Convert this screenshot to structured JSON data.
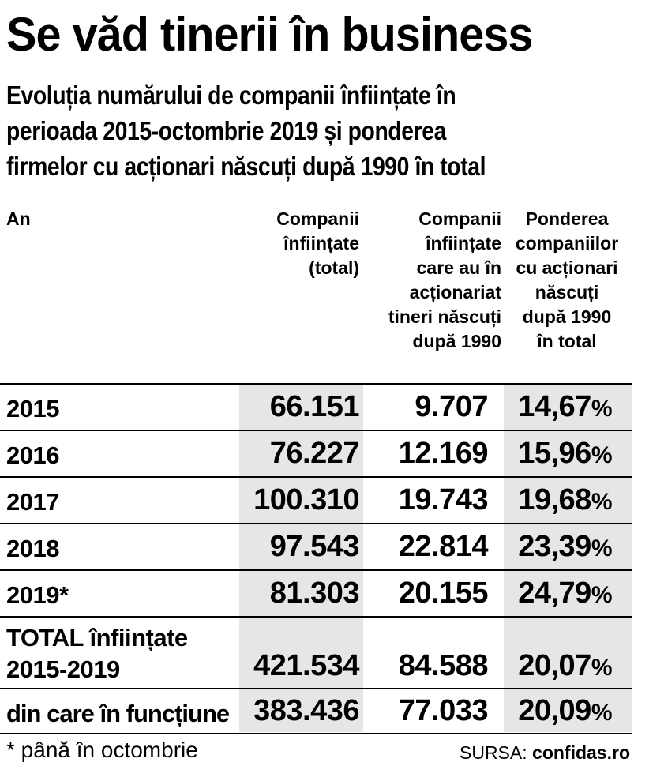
{
  "title": "Se văd tinerii în business",
  "subtitle_lines": [
    "Evoluția numărului de companii înființate în",
    "perioada 2015-octombrie 2019 și ponderea",
    "firmelor cu acționari născuți după 1990 în total"
  ],
  "headers": {
    "year": "An",
    "col1": [
      "Companii",
      "înființate",
      "(total)"
    ],
    "col2": [
      "Companii",
      "înființate",
      "care au în",
      "acționariat",
      "tineri născuți",
      "după 1990"
    ],
    "col3": [
      "Ponderea",
      "companiilor",
      "cu acționari",
      "născuți",
      "după 1990",
      "în total"
    ]
  },
  "rows": [
    {
      "year": "2015",
      "total": "66.151",
      "young": "9.707",
      "share": "14,67"
    },
    {
      "year": "2016",
      "total": "76.227",
      "young": "12.169",
      "share": "15,96"
    },
    {
      "year": "2017",
      "total": "100.310",
      "young": "19.743",
      "share": "19,68"
    },
    {
      "year": "2018",
      "total": "97.543",
      "young": "22.814",
      "share": "23,39"
    },
    {
      "year": "2019*",
      "total": "81.303",
      "young": "20.155",
      "share": "24,79"
    }
  ],
  "total_row": {
    "label_lines": [
      "TOTAL înființate",
      "2015-2019"
    ],
    "total": "421.534",
    "young": "84.588",
    "share": "20,07"
  },
  "active_row": {
    "label": "din care în funcțiune",
    "total": "383.436",
    "young": "77.033",
    "share": "20,09"
  },
  "percent_sign": "%",
  "footnote": "* până în octombrie",
  "source_label": "SURSA:",
  "source_value": "confidas.ro",
  "colors": {
    "shade": "#e6e6e6",
    "text": "#000000"
  }
}
